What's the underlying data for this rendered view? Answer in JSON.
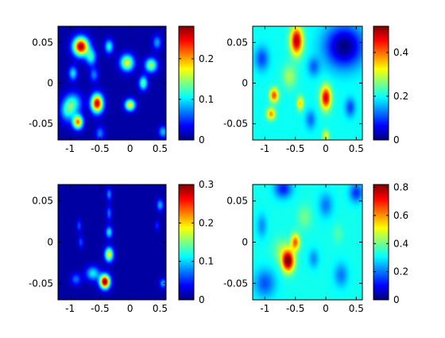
{
  "chart_data": [
    {
      "type": "heatmap",
      "colormap": "jet",
      "xlim": [
        -1.2,
        0.6
      ],
      "ylim": [
        -0.07,
        0.07
      ],
      "xticks": [
        -1,
        -0.5,
        0,
        0.5
      ],
      "yticks": [
        -0.05,
        0,
        0.05
      ],
      "xtick_labels": [
        "-1",
        "-0.5",
        "0",
        "0.5"
      ],
      "ytick_labels": [
        "-0.05",
        "0",
        "0.05"
      ],
      "colorbar": {
        "range": [
          0,
          0.28
        ],
        "ticks": [
          0,
          0.1,
          0.2
        ],
        "labels": [
          "0",
          "0.1",
          "0.2"
        ]
      },
      "background": 0.01,
      "peaks": [
        {
          "x": -0.82,
          "y": 0.045,
          "value": 0.26,
          "sx": 0.09,
          "sy": 0.008
        },
        {
          "x": -0.55,
          "y": -0.025,
          "value": 0.25,
          "sx": 0.07,
          "sy": 0.008
        },
        {
          "x": -0.87,
          "y": -0.048,
          "value": 0.2,
          "sx": 0.06,
          "sy": 0.006
        },
        {
          "x": -0.95,
          "y": -0.025,
          "value": 0.1,
          "sx": 0.1,
          "sy": 0.009
        },
        {
          "x": -1.05,
          "y": -0.035,
          "value": 0.08,
          "sx": 0.08,
          "sy": 0.009
        },
        {
          "x": -0.65,
          "y": 0.032,
          "value": 0.1,
          "sx": 0.06,
          "sy": 0.007
        },
        {
          "x": -0.35,
          "y": 0.045,
          "value": 0.1,
          "sx": 0.05,
          "sy": 0.006
        },
        {
          "x": -0.05,
          "y": 0.025,
          "value": 0.16,
          "sx": 0.08,
          "sy": 0.007
        },
        {
          "x": 0.35,
          "y": 0.022,
          "value": 0.14,
          "sx": 0.07,
          "sy": 0.006
        },
        {
          "x": 0.22,
          "y": 0.0,
          "value": 0.12,
          "sx": 0.05,
          "sy": 0.006
        },
        {
          "x": 0.0,
          "y": -0.027,
          "value": 0.17,
          "sx": 0.06,
          "sy": 0.005
        },
        {
          "x": -0.95,
          "y": 0.012,
          "value": 0.09,
          "sx": 0.05,
          "sy": 0.006
        },
        {
          "x": -0.6,
          "y": 0.01,
          "value": 0.06,
          "sx": 0.05,
          "sy": 0.006
        },
        {
          "x": -0.5,
          "y": -0.062,
          "value": 0.06,
          "sx": 0.05,
          "sy": 0.006
        },
        {
          "x": 0.55,
          "y": -0.06,
          "value": 0.08,
          "sx": 0.05,
          "sy": 0.005
        },
        {
          "x": 0.45,
          "y": 0.05,
          "value": 0.07,
          "sx": 0.05,
          "sy": 0.006
        }
      ]
    },
    {
      "type": "heatmap",
      "colormap": "jet",
      "xlim": [
        -1.2,
        0.6
      ],
      "ylim": [
        -0.07,
        0.07
      ],
      "xticks": [
        -1,
        -0.5,
        0,
        0.5
      ],
      "yticks": [
        -0.05,
        0,
        0.05
      ],
      "xtick_labels": [
        "-1",
        "-0.5",
        "0",
        "0.5"
      ],
      "ytick_labels": [
        "-0.05",
        "0",
        "0.05"
      ],
      "colorbar": {
        "range": [
          0,
          0.52
        ],
        "ticks": [
          0,
          0.2,
          0.4
        ],
        "labels": [
          "0",
          "0.2",
          "0.4"
        ]
      },
      "background": 0.2,
      "peaks": [
        {
          "x": -0.48,
          "y": 0.052,
          "value": 0.3,
          "sx": 0.07,
          "sy": 0.012
        },
        {
          "x": 0.0,
          "y": -0.018,
          "value": 0.28,
          "sx": 0.06,
          "sy": 0.01
        },
        {
          "x": -0.85,
          "y": -0.015,
          "value": 0.22,
          "sx": 0.05,
          "sy": 0.006
        },
        {
          "x": -0.9,
          "y": -0.038,
          "value": 0.18,
          "sx": 0.05,
          "sy": 0.005
        },
        {
          "x": -0.42,
          "y": -0.025,
          "value": 0.15,
          "sx": 0.04,
          "sy": 0.006
        },
        {
          "x": -0.6,
          "y": 0.008,
          "value": 0.08,
          "sx": 0.08,
          "sy": 0.01
        },
        {
          "x": 0.0,
          "y": -0.065,
          "value": 0.12,
          "sx": 0.04,
          "sy": 0.005
        },
        {
          "x": 0.3,
          "y": 0.045,
          "value": -0.2,
          "sx": 0.22,
          "sy": 0.018
        },
        {
          "x": 0.4,
          "y": -0.03,
          "value": -0.1,
          "sx": 0.06,
          "sy": 0.008
        },
        {
          "x": -1.05,
          "y": 0.03,
          "value": -0.1,
          "sx": 0.08,
          "sy": 0.01
        },
        {
          "x": -0.2,
          "y": 0.02,
          "value": -0.08,
          "sx": 0.07,
          "sy": 0.008
        },
        {
          "x": -0.25,
          "y": -0.045,
          "value": -0.08,
          "sx": 0.06,
          "sy": 0.008
        }
      ]
    },
    {
      "type": "heatmap",
      "colormap": "jet",
      "xlim": [
        -1.2,
        0.6
      ],
      "ylim": [
        -0.07,
        0.07
      ],
      "xticks": [
        -1,
        -0.5,
        0,
        0.5
      ],
      "yticks": [
        -0.05,
        0,
        0.05
      ],
      "xtick_labels": [
        "-1",
        "-0.5",
        "0",
        "0.5"
      ],
      "ytick_labels": [
        "-0.05",
        "0",
        "0.05"
      ],
      "colorbar": {
        "range": [
          0,
          0.3
        ],
        "ticks": [
          0,
          0.1,
          0.2,
          0.3
        ],
        "labels": [
          "0",
          "0.1",
          "0.2",
          "0.3"
        ]
      },
      "background": 0.01,
      "peaks": [
        {
          "x": -0.42,
          "y": -0.048,
          "value": 0.29,
          "sx": 0.06,
          "sy": 0.006
        },
        {
          "x": -0.35,
          "y": -0.015,
          "value": 0.18,
          "sx": 0.05,
          "sy": 0.006
        },
        {
          "x": -0.62,
          "y": -0.038,
          "value": 0.1,
          "sx": 0.08,
          "sy": 0.006
        },
        {
          "x": -0.35,
          "y": 0.012,
          "value": 0.1,
          "sx": 0.04,
          "sy": 0.005
        },
        {
          "x": -0.35,
          "y": 0.035,
          "value": 0.06,
          "sx": 0.03,
          "sy": 0.006
        },
        {
          "x": -0.35,
          "y": 0.058,
          "value": 0.07,
          "sx": 0.03,
          "sy": 0.005
        },
        {
          "x": -0.85,
          "y": 0.02,
          "value": 0.05,
          "sx": 0.03,
          "sy": 0.005
        },
        {
          "x": -0.82,
          "y": 0.0,
          "value": 0.05,
          "sx": 0.03,
          "sy": 0.005
        },
        {
          "x": -0.9,
          "y": -0.045,
          "value": 0.06,
          "sx": 0.06,
          "sy": 0.005
        },
        {
          "x": 0.5,
          "y": 0.045,
          "value": 0.08,
          "sx": 0.04,
          "sy": 0.005
        },
        {
          "x": 0.55,
          "y": -0.05,
          "value": 0.08,
          "sx": 0.04,
          "sy": 0.004
        },
        {
          "x": 0.45,
          "y": 0.02,
          "value": 0.04,
          "sx": 0.03,
          "sy": 0.004
        }
      ]
    },
    {
      "type": "heatmap",
      "colormap": "jet",
      "xlim": [
        -1.2,
        0.6
      ],
      "ylim": [
        -0.07,
        0.07
      ],
      "xticks": [
        -1,
        -0.5,
        0,
        0.5
      ],
      "yticks": [
        -0.05,
        0,
        0.05
      ],
      "xtick_labels": [
        "-1",
        "-0.5",
        "0",
        "0.5"
      ],
      "ytick_labels": [
        "-0.05",
        "0",
        "0.05"
      ],
      "colorbar": {
        "range": [
          0,
          0.82
        ],
        "ticks": [
          0,
          0.2,
          0.4,
          0.6,
          0.8
        ],
        "labels": [
          "0",
          "0.2",
          "0.4",
          "0.6",
          "0.8"
        ]
      },
      "background": 0.32,
      "peaks": [
        {
          "x": -0.62,
          "y": -0.023,
          "value": 0.52,
          "sx": 0.07,
          "sy": 0.009
        },
        {
          "x": -0.5,
          "y": 0.0,
          "value": 0.32,
          "sx": 0.05,
          "sy": 0.007
        },
        {
          "x": -0.72,
          "y": -0.01,
          "value": 0.1,
          "sx": 0.1,
          "sy": 0.01
        },
        {
          "x": -0.35,
          "y": 0.03,
          "value": 0.08,
          "sx": 0.08,
          "sy": 0.01
        },
        {
          "x": -1.0,
          "y": -0.05,
          "value": -0.15,
          "sx": 0.12,
          "sy": 0.012
        },
        {
          "x": -0.7,
          "y": 0.065,
          "value": -0.2,
          "sx": 0.1,
          "sy": 0.008
        },
        {
          "x": 0.5,
          "y": 0.06,
          "value": -0.18,
          "sx": 0.08,
          "sy": 0.008
        },
        {
          "x": 0.0,
          "y": 0.045,
          "value": -0.12,
          "sx": 0.08,
          "sy": 0.01
        },
        {
          "x": 0.25,
          "y": -0.04,
          "value": -0.12,
          "sx": 0.08,
          "sy": 0.01
        },
        {
          "x": -1.05,
          "y": 0.02,
          "value": -0.1,
          "sx": 0.06,
          "sy": 0.01
        },
        {
          "x": -0.2,
          "y": -0.02,
          "value": -0.1,
          "sx": 0.06,
          "sy": 0.008
        },
        {
          "x": 0.2,
          "y": 0.01,
          "value": 0.05,
          "sx": 0.06,
          "sy": 0.008
        }
      ]
    }
  ]
}
